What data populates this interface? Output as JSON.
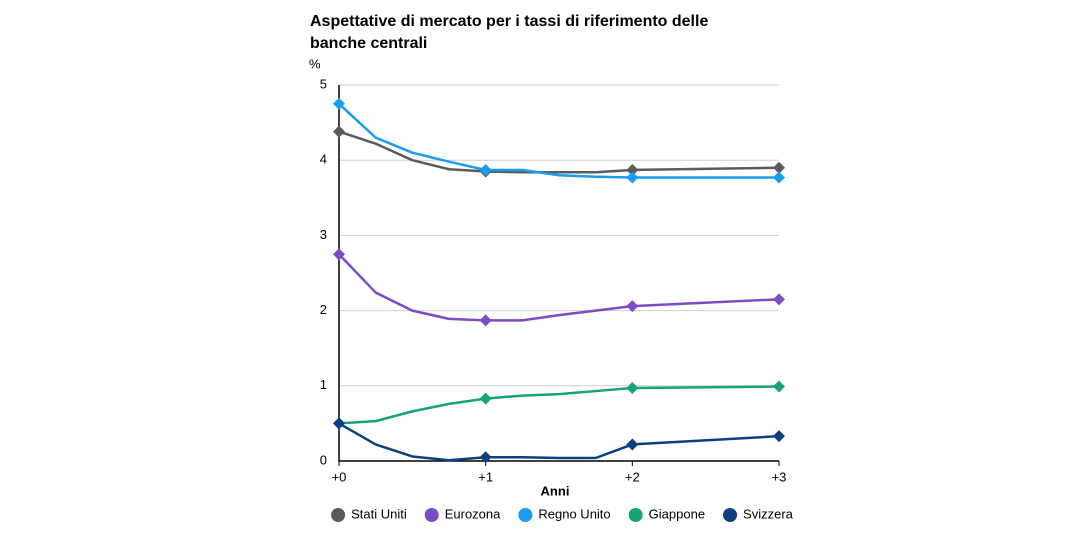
{
  "chart_data": {
    "type": "line",
    "title": "Aspettative di mercato per i tassi di riferimento delle banche centrali",
    "y_label": "%",
    "x_label": "Anni",
    "x": [
      0,
      0.25,
      0.5,
      0.75,
      1,
      1.25,
      1.5,
      1.75,
      2,
      3
    ],
    "series": [
      {
        "name": "Stati Uniti",
        "color": "#5b5b5b",
        "values": [
          4.38,
          4.22,
          4.0,
          3.88,
          3.85,
          3.84,
          3.84,
          3.84,
          3.87,
          3.9
        ]
      },
      {
        "name": "Eurozona",
        "color": "#7b4cc4",
        "values": [
          2.75,
          2.24,
          2.0,
          1.89,
          1.87,
          1.87,
          1.94,
          2.0,
          2.06,
          2.15
        ]
      },
      {
        "name": "Regno Unito",
        "color": "#1a9cf0",
        "values": [
          4.75,
          4.3,
          4.1,
          3.98,
          3.87,
          3.87,
          3.8,
          3.78,
          3.77,
          3.77
        ]
      },
      {
        "name": "Giappone",
        "color": "#17a37a",
        "values": [
          0.5,
          0.53,
          0.66,
          0.76,
          0.83,
          0.87,
          0.89,
          0.93,
          0.97,
          0.99
        ]
      },
      {
        "name": "Svizzera",
        "color": "#0c3f80",
        "values": [
          0.5,
          0.22,
          0.06,
          0.01,
          0.05,
          0.05,
          0.04,
          0.04,
          0.22,
          0.33
        ]
      }
    ],
    "xlim": [
      0,
      3
    ],
    "xticks": [
      {
        "value": 0,
        "label": "+0"
      },
      {
        "value": 1,
        "label": "+1"
      },
      {
        "value": 2,
        "label": "+2"
      },
      {
        "value": 3,
        "label": "+3"
      }
    ],
    "ylim": [
      0,
      5
    ],
    "yticks": [
      0,
      1,
      2,
      3,
      4,
      5
    ],
    "grid": true,
    "legend": "bottom"
  }
}
